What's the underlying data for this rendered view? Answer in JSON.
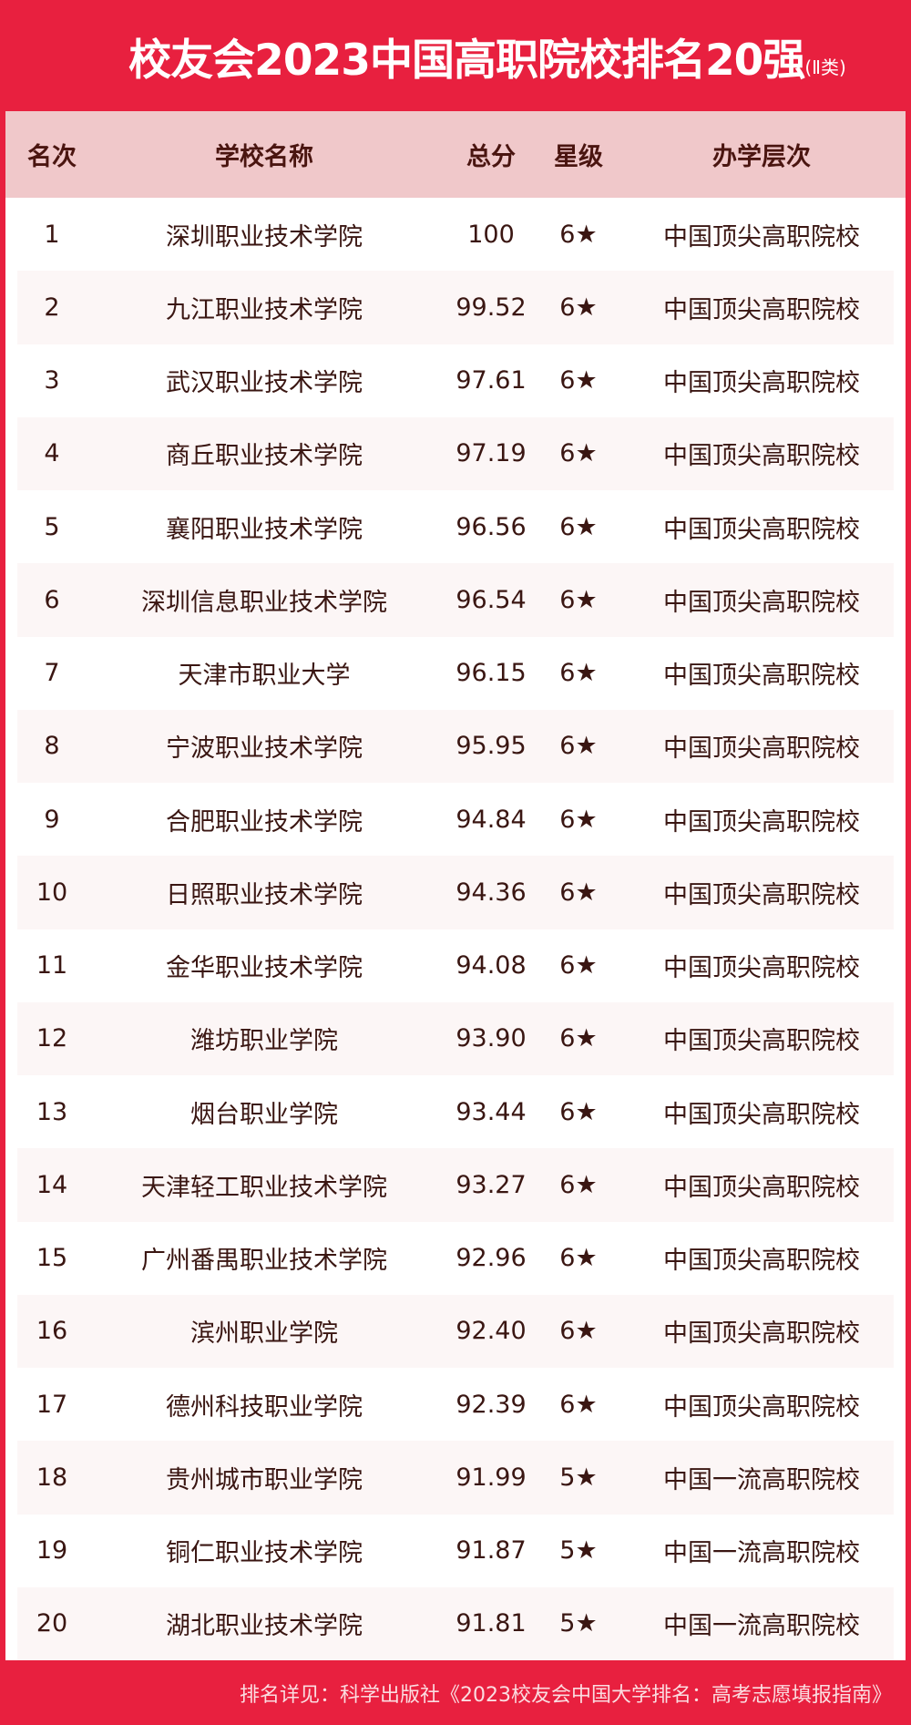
{
  "title": {
    "main": "校友会2023中国高职院校排名20强",
    "sub": "(Ⅱ类)"
  },
  "colors": {
    "brand_red": "#e8203f",
    "header_bg": "#f0c8ca",
    "stripe": "#fcf6f6"
  },
  "columns": [
    "名次",
    "学校名称",
    "总分",
    "星级",
    "办学层次"
  ],
  "rows": [
    [
      "1",
      "深圳职业技术学院",
      "100",
      "6★",
      "中国顶尖高职院校"
    ],
    [
      "2",
      "九江职业技术学院",
      "99.52",
      "6★",
      "中国顶尖高职院校"
    ],
    [
      "3",
      "武汉职业技术学院",
      "97.61",
      "6★",
      "中国顶尖高职院校"
    ],
    [
      "4",
      "商丘职业技术学院",
      "97.19",
      "6★",
      "中国顶尖高职院校"
    ],
    [
      "5",
      "襄阳职业技术学院",
      "96.56",
      "6★",
      "中国顶尖高职院校"
    ],
    [
      "6",
      "深圳信息职业技术学院",
      "96.54",
      "6★",
      "中国顶尖高职院校"
    ],
    [
      "7",
      "天津市职业大学",
      "96.15",
      "6★",
      "中国顶尖高职院校"
    ],
    [
      "8",
      "宁波职业技术学院",
      "95.95",
      "6★",
      "中国顶尖高职院校"
    ],
    [
      "9",
      "合肥职业技术学院",
      "94.84",
      "6★",
      "中国顶尖高职院校"
    ],
    [
      "10",
      "日照职业技术学院",
      "94.36",
      "6★",
      "中国顶尖高职院校"
    ],
    [
      "11",
      "金华职业技术学院",
      "94.08",
      "6★",
      "中国顶尖高职院校"
    ],
    [
      "12",
      "潍坊职业学院",
      "93.90",
      "6★",
      "中国顶尖高职院校"
    ],
    [
      "13",
      "烟台职业学院",
      "93.44",
      "6★",
      "中国顶尖高职院校"
    ],
    [
      "14",
      "天津轻工职业技术学院",
      "93.27",
      "6★",
      "中国顶尖高职院校"
    ],
    [
      "15",
      "广州番禺职业技术学院",
      "92.96",
      "6★",
      "中国顶尖高职院校"
    ],
    [
      "16",
      "滨州职业学院",
      "92.40",
      "6★",
      "中国顶尖高职院校"
    ],
    [
      "17",
      "德州科技职业学院",
      "92.39",
      "6★",
      "中国顶尖高职院校"
    ],
    [
      "18",
      "贵州城市职业学院",
      "91.99",
      "5★",
      "中国一流高职院校"
    ],
    [
      "19",
      "铜仁职业技术学院",
      "91.87",
      "5★",
      "中国一流高职院校"
    ],
    [
      "20",
      "湖北职业技术学院",
      "91.81",
      "5★",
      "中国一流高职院校"
    ]
  ],
  "footer": "排名详见：科学出版社《2023校友会中国大学排名：高考志愿填报指南》"
}
